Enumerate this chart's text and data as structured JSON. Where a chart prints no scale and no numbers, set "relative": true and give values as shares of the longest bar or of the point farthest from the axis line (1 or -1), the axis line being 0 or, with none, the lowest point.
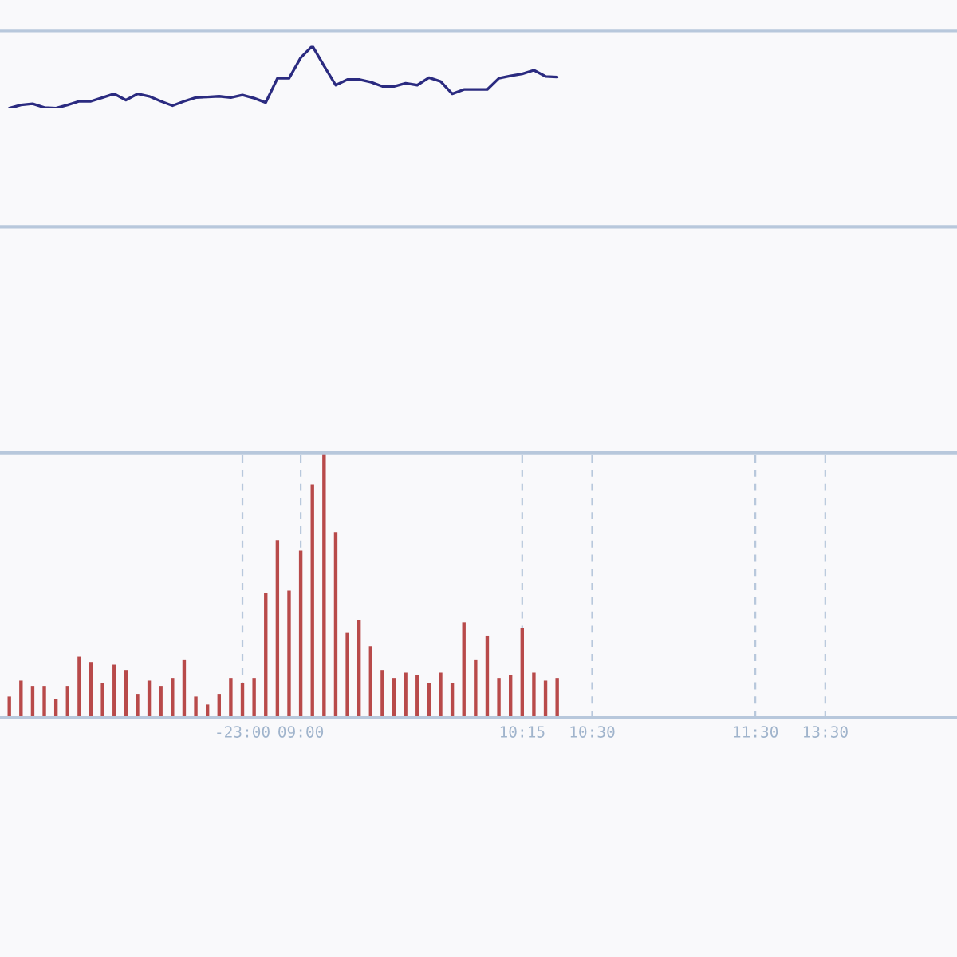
{
  "chart_data": [
    {
      "type": "line",
      "relative": true,
      "tick_labels": false,
      "categories": [
        null,
        null,
        null,
        null,
        null,
        null,
        null,
        null,
        null,
        null,
        null,
        null,
        null,
        null,
        null,
        null,
        null,
        null,
        null,
        null,
        null,
        null,
        null,
        null,
        null,
        null,
        null,
        null,
        null,
        null,
        null,
        null,
        null,
        null,
        null,
        null,
        null,
        null,
        null,
        null,
        null,
        null,
        null,
        null,
        null,
        null,
        null,
        null,
        null,
        null,
        null,
        null,
        null,
        null,
        null,
        null,
        null,
        null,
        null,
        null,
        null,
        null,
        null,
        null,
        null,
        null,
        null,
        null,
        null,
        null,
        null,
        null,
        null,
        null,
        null,
        null,
        null,
        null,
        null,
        null,
        null,
        null
      ],
      "series": [
        {
          "color": "#2b2b80",
          "values": [
            0,
            0.05,
            0.07,
            0.01,
            0,
            0.05,
            0.11,
            0.11,
            0.17,
            0.23,
            0.13,
            0.23,
            0.19,
            0.11,
            0.04,
            0.11,
            0.17,
            0.18,
            0.19,
            0.17,
            0.21,
            0.16,
            0.09,
            0.48,
            0.48,
            0.81,
            1,
            0.68,
            0.37,
            0.46,
            0.46,
            0.42,
            0.35,
            0.35,
            0.4,
            0.37,
            0.49,
            0.43,
            0.23,
            0.3,
            0.3,
            0.3,
            0.48,
            0.52,
            0.55,
            0.61,
            0.51,
            0.5,
            null,
            null,
            null,
            null,
            null,
            null,
            null,
            null,
            null,
            null,
            null,
            null,
            null,
            null,
            null,
            null,
            null,
            null,
            null,
            null,
            null,
            null,
            null,
            null,
            null,
            null,
            null,
            null,
            null,
            null,
            null,
            null,
            null,
            null
          ]
        }
      ]
    },
    {
      "type": "bar",
      "relative": true,
      "tick_labels": "x",
      "grid": "x",
      "categories": [
        null,
        null,
        null,
        null,
        null,
        null,
        null,
        null,
        null,
        null,
        null,
        null,
        null,
        null,
        null,
        null,
        null,
        null,
        null,
        null,
        "-23:00",
        null,
        null,
        null,
        null,
        "09:00",
        null,
        null,
        null,
        null,
        null,
        null,
        null,
        null,
        null,
        null,
        null,
        null,
        null,
        null,
        null,
        null,
        null,
        null,
        "10:15",
        null,
        null,
        null,
        null,
        null,
        "10:30",
        null,
        null,
        null,
        null,
        null,
        null,
        null,
        null,
        null,
        null,
        null,
        null,
        null,
        "11:30",
        null,
        null,
        null,
        null,
        null,
        "13:30",
        null,
        null,
        null,
        null,
        null,
        null,
        null,
        null,
        null,
        null,
        null
      ],
      "series": [
        {
          "color": "#b84a4a",
          "values": [
            0.08,
            0.14,
            0.12,
            0.12,
            0.07,
            0.12,
            0.23,
            0.21,
            0.13,
            0.2,
            0.18,
            0.09,
            0.14,
            0.12,
            0.15,
            0.22,
            0.08,
            0.05,
            0.09,
            0.15,
            0.13,
            0.15,
            0.47,
            0.67,
            0.48,
            0.63,
            0.88,
            1,
            0.7,
            0.32,
            0.37,
            0.27,
            0.18,
            0.15,
            0.17,
            0.16,
            0.13,
            0.17,
            0.13,
            0.36,
            0.22,
            0.31,
            0.15,
            0.16,
            0.34,
            0.17,
            0.14,
            0.15,
            null,
            null,
            null,
            null,
            null,
            null,
            null,
            null,
            null,
            null,
            null,
            null,
            null,
            null,
            null,
            null,
            null,
            null,
            null,
            null,
            null,
            null,
            null,
            null,
            null,
            null,
            null,
            null,
            null,
            null,
            null,
            null,
            null,
            null
          ]
        }
      ]
    }
  ]
}
